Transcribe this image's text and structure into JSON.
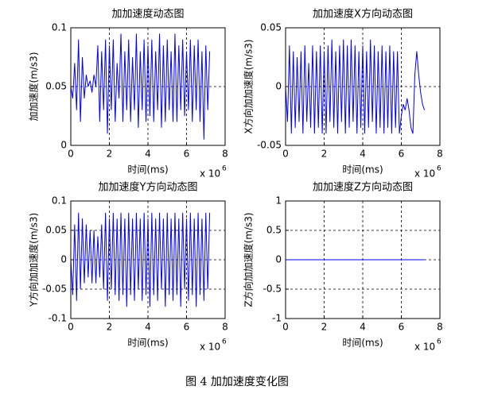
{
  "caption": "图 4 加加速度变化图",
  "chart_data": [
    {
      "type": "line",
      "title": "加加速度动态图",
      "xlabel": "时间(ms)",
      "ylabel": "加加速度(m/s3)",
      "x_scale_label": "x 10",
      "x_scale_power": "6",
      "x": [
        0,
        0.1,
        0.2,
        0.3,
        0.4,
        0.5,
        0.6,
        0.7,
        0.8,
        0.9,
        1,
        1.1,
        1.2,
        1.3,
        1.4,
        1.5,
        1.6,
        1.7,
        1.8,
        1.9,
        2,
        2.1,
        2.2,
        2.3,
        2.4,
        2.5,
        2.6,
        2.7,
        2.8,
        2.9,
        3,
        3.1,
        3.2,
        3.3,
        3.4,
        3.5,
        3.6,
        3.7,
        3.8,
        3.9,
        4,
        4.1,
        4.2,
        4.3,
        4.4,
        4.5,
        4.6,
        4.7,
        4.8,
        4.9,
        5,
        5.1,
        5.2,
        5.3,
        5.4,
        5.5,
        5.6,
        5.7,
        5.8,
        5.9,
        6,
        6.1,
        6.2,
        6.3,
        6.4,
        6.5,
        6.6,
        6.7,
        6.8,
        6.9,
        7,
        7.1,
        7.2
      ],
      "series": [
        {
          "color": "#0000ff",
          "values": [
            0.05,
            0.04,
            0.07,
            0.03,
            0.09,
            0.02,
            0.075,
            0.04,
            0.06,
            0.05,
            0.055,
            0.045,
            0.06,
            0.05,
            0.085,
            0.02,
            0.08,
            0.03,
            0.09,
            0.01,
            0.085,
            0.03,
            0.09,
            0.02,
            0.07,
            0.04,
            0.095,
            0.02,
            0.08,
            0.03,
            0.09,
            0.02,
            0.075,
            0.03,
            0.095,
            0.015,
            0.08,
            0.03,
            0.09,
            0.02,
            0.085,
            0.025,
            0.09,
            0.02,
            0.08,
            0.03,
            0.095,
            0.015,
            0.085,
            0.02,
            0.09,
            0.03,
            0.08,
            0.02,
            0.095,
            0.02,
            0.085,
            0.03,
            0.09,
            0.025,
            0.08,
            0.03,
            0.09,
            0.02,
            0.085,
            0.03,
            0.09,
            0.02,
            0.08,
            0.005,
            0.085,
            0.03,
            0.08
          ]
        }
      ],
      "xlim": [
        0,
        8
      ],
      "xticks": [
        0,
        2,
        4,
        6,
        8
      ],
      "ylim": [
        0,
        0.1
      ],
      "yticks": [
        0,
        0.05,
        0.1
      ],
      "grid": true
    },
    {
      "type": "line",
      "title": "加加速度X方向动态图",
      "xlabel": "时间(ms)",
      "ylabel": "X方向加加速度(m/s3)",
      "x_scale_label": "x 10",
      "x_scale_power": "6",
      "x": [
        0,
        0.1,
        0.2,
        0.3,
        0.4,
        0.5,
        0.6,
        0.7,
        0.8,
        0.9,
        1,
        1.1,
        1.2,
        1.3,
        1.4,
        1.5,
        1.6,
        1.7,
        1.8,
        1.9,
        2,
        2.1,
        2.2,
        2.3,
        2.4,
        2.5,
        2.6,
        2.7,
        2.8,
        2.9,
        3,
        3.1,
        3.2,
        3.3,
        3.4,
        3.5,
        3.6,
        3.7,
        3.8,
        3.9,
        4,
        4.1,
        4.2,
        4.3,
        4.4,
        4.5,
        4.6,
        4.7,
        4.8,
        4.9,
        5,
        5.1,
        5.2,
        5.3,
        5.4,
        5.5,
        5.6,
        5.7,
        5.8,
        5.9,
        6,
        6.1,
        6.2,
        6.3,
        6.4,
        6.5,
        6.6,
        6.7,
        6.8,
        6.9,
        7,
        7.1,
        7.2
      ],
      "series": [
        {
          "color": "#0000ff",
          "values": [
            0.0,
            -0.03,
            0.035,
            -0.04,
            0.03,
            -0.035,
            0.025,
            -0.03,
            0.03,
            -0.04,
            0.035,
            -0.03,
            0.02,
            -0.035,
            0.035,
            -0.04,
            0.03,
            -0.035,
            0.035,
            -0.04,
            0.03,
            -0.04,
            0.035,
            -0.03,
            0.04,
            -0.035,
            0.03,
            -0.04,
            0.035,
            -0.03,
            0.04,
            -0.04,
            0.035,
            -0.035,
            0.04,
            -0.03,
            0.035,
            -0.04,
            0.03,
            -0.035,
            0.035,
            -0.04,
            0.03,
            -0.035,
            0.04,
            -0.03,
            0.035,
            -0.04,
            0.03,
            -0.035,
            0.035,
            -0.04,
            0.03,
            -0.035,
            0.035,
            -0.04,
            0.03,
            -0.035,
            0.03,
            -0.04,
            -0.025,
            -0.015,
            -0.02,
            -0.01,
            -0.02,
            -0.035,
            -0.04,
            0.01,
            0.03,
            0.01,
            -0.005,
            -0.015,
            -0.02
          ]
        }
      ],
      "xlim": [
        0,
        8
      ],
      "xticks": [
        0,
        2,
        4,
        6,
        8
      ],
      "ylim": [
        -0.05,
        0.05
      ],
      "yticks": [
        -0.05,
        0,
        0.05
      ],
      "grid": true
    },
    {
      "type": "line",
      "title": "加加速度Y方向动态图",
      "xlabel": "时间(ms)",
      "ylabel": "Y方向加加速度(m/s3)",
      "x_scale_label": "x 10",
      "x_scale_power": "6",
      "x": [
        0,
        0.1,
        0.2,
        0.3,
        0.4,
        0.5,
        0.6,
        0.7,
        0.8,
        0.9,
        1,
        1.1,
        1.2,
        1.3,
        1.4,
        1.5,
        1.6,
        1.7,
        1.8,
        1.9,
        2,
        2.1,
        2.2,
        2.3,
        2.4,
        2.5,
        2.6,
        2.7,
        2.8,
        2.9,
        3,
        3.1,
        3.2,
        3.3,
        3.4,
        3.5,
        3.6,
        3.7,
        3.8,
        3.9,
        4,
        4.1,
        4.2,
        4.3,
        4.4,
        4.5,
        4.6,
        4.7,
        4.8,
        4.9,
        5,
        5.1,
        5.2,
        5.3,
        5.4,
        5.5,
        5.6,
        5.7,
        5.8,
        5.9,
        6,
        6.1,
        6.2,
        6.3,
        6.4,
        6.5,
        6.6,
        6.7,
        6.8,
        6.9,
        7,
        7.1,
        7.2
      ],
      "series": [
        {
          "color": "#0000ff",
          "values": [
            0.0,
            -0.06,
            0.06,
            -0.07,
            0.08,
            -0.05,
            0.07,
            -0.04,
            0.06,
            -0.03,
            0.05,
            -0.04,
            0.05,
            -0.04,
            0.04,
            -0.03,
            0.06,
            -0.05,
            0.08,
            -0.07,
            0.07,
            -0.05,
            0.08,
            -0.06,
            0.07,
            -0.07,
            0.08,
            -0.06,
            0.07,
            -0.08,
            0.08,
            -0.06,
            0.07,
            -0.07,
            0.08,
            -0.05,
            0.07,
            -0.07,
            0.08,
            -0.06,
            0.07,
            -0.08,
            0.08,
            -0.06,
            0.07,
            -0.07,
            0.08,
            -0.05,
            0.07,
            -0.08,
            0.08,
            -0.06,
            0.07,
            -0.07,
            0.08,
            -0.06,
            0.07,
            -0.08,
            0.08,
            -0.05,
            0.07,
            -0.07,
            0.08,
            -0.06,
            0.07,
            -0.08,
            0.08,
            -0.06,
            0.07,
            -0.07,
            0.08,
            -0.05,
            0.08
          ]
        }
      ],
      "xlim": [
        0,
        8
      ],
      "xticks": [
        0,
        2,
        4,
        6,
        8
      ],
      "ylim": [
        -0.1,
        0.1
      ],
      "yticks": [
        -0.1,
        -0.05,
        0,
        0.05,
        0.1
      ],
      "grid": true
    },
    {
      "type": "line",
      "title": "加加速度Z方向动态图",
      "xlabel": "时间(ms)",
      "ylabel": "Z方向加加速度(m/s3)",
      "x_scale_label": "x 10",
      "x_scale_power": "6",
      "x": [
        0,
        7.2
      ],
      "series": [
        {
          "color": "#0000ff",
          "values": [
            0,
            0
          ]
        }
      ],
      "xlim": [
        0,
        8
      ],
      "xticks": [
        0,
        2,
        4,
        6,
        8
      ],
      "ylim": [
        -1,
        1
      ],
      "yticks": [
        -1,
        -0.5,
        0,
        0.5,
        1
      ],
      "grid": true
    }
  ]
}
